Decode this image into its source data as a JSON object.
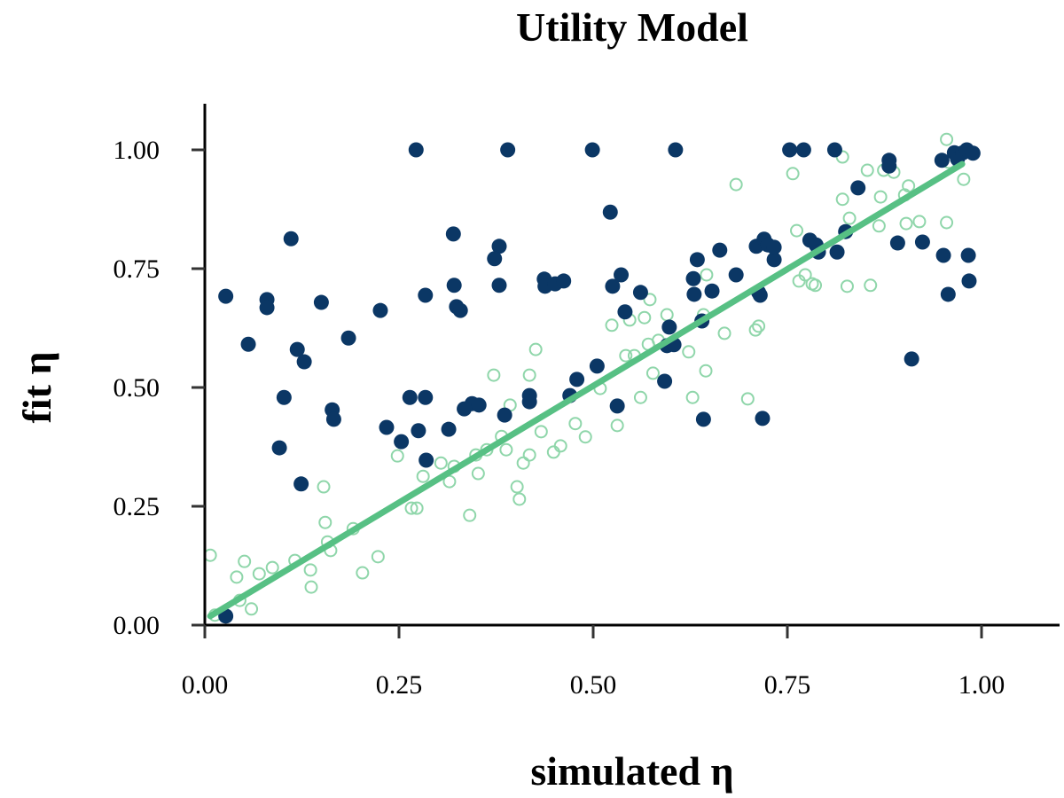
{
  "chart_data": {
    "type": "scatter",
    "title": "Utility Model",
    "xlabel": "simulated η",
    "ylabel": "fit η",
    "xlim": [
      0,
      1.1
    ],
    "ylim": [
      0,
      1.1
    ],
    "xticks": [
      "0.00",
      "0.25",
      "0.50",
      "0.75",
      "1.00"
    ],
    "yticks": [
      "0.00",
      "0.25",
      "0.50",
      "0.75",
      "1.00"
    ],
    "xtick_values": [
      0,
      0.25,
      0.5,
      0.75,
      1.0
    ],
    "ytick_values": [
      0,
      0.25,
      0.5,
      0.75,
      1.0
    ],
    "grid": false,
    "colors": {
      "filled": "#0b3765",
      "open": "#8fd6aa",
      "fit_line": "#57c084"
    },
    "series": [
      {
        "style": "filled",
        "points": [
          [
            0.027,
            0.692
          ],
          [
            0.027,
            0.019
          ],
          [
            0.056,
            0.591
          ],
          [
            0.08,
            0.685
          ],
          [
            0.08,
            0.668
          ],
          [
            0.111,
            0.813
          ],
          [
            0.102,
            0.479
          ],
          [
            0.096,
            0.373
          ],
          [
            0.119,
            0.58
          ],
          [
            0.128,
            0.554
          ],
          [
            0.124,
            0.297
          ],
          [
            0.15,
            0.679
          ],
          [
            0.164,
            0.453
          ],
          [
            0.166,
            0.433
          ],
          [
            0.185,
            0.604
          ],
          [
            0.226,
            0.662
          ],
          [
            0.234,
            0.416
          ],
          [
            0.253,
            0.386
          ],
          [
            0.264,
            0.479
          ],
          [
            0.275,
            0.409
          ],
          [
            0.272,
            1.0
          ],
          [
            0.284,
            0.694
          ],
          [
            0.284,
            0.479
          ],
          [
            0.285,
            0.347
          ],
          [
            0.314,
            0.412
          ],
          [
            0.32,
            0.823
          ],
          [
            0.321,
            0.715
          ],
          [
            0.324,
            0.67
          ],
          [
            0.329,
            0.662
          ],
          [
            0.334,
            0.455
          ],
          [
            0.344,
            0.466
          ],
          [
            0.353,
            0.463
          ],
          [
            0.379,
            0.797
          ],
          [
            0.373,
            0.771
          ],
          [
            0.379,
            0.715
          ],
          [
            0.386,
            0.442
          ],
          [
            0.39,
            1.0
          ],
          [
            0.418,
            0.483
          ],
          [
            0.418,
            0.47
          ],
          [
            0.437,
            0.728
          ],
          [
            0.438,
            0.713
          ],
          [
            0.451,
            0.718
          ],
          [
            0.462,
            0.724
          ],
          [
            0.47,
            0.483
          ],
          [
            0.479,
            0.517
          ],
          [
            0.499,
            1.0
          ],
          [
            0.505,
            0.545
          ],
          [
            0.522,
            0.869
          ],
          [
            0.525,
            0.713
          ],
          [
            0.531,
            0.461
          ],
          [
            0.536,
            0.737
          ],
          [
            0.541,
            0.659
          ],
          [
            0.561,
            0.7
          ],
          [
            0.592,
            0.513
          ],
          [
            0.598,
            0.627
          ],
          [
            0.595,
            0.588
          ],
          [
            0.604,
            0.59
          ],
          [
            0.606,
            1.0
          ],
          [
            0.629,
            0.729
          ],
          [
            0.634,
            0.769
          ],
          [
            0.63,
            0.696
          ],
          [
            0.64,
            0.64
          ],
          [
            0.642,
            0.433
          ],
          [
            0.653,
            0.703
          ],
          [
            0.663,
            0.789
          ],
          [
            0.684,
            0.737
          ],
          [
            0.71,
            0.797
          ],
          [
            0.713,
            0.7
          ],
          [
            0.715,
            0.694
          ],
          [
            0.718,
            0.435
          ],
          [
            0.72,
            0.812
          ],
          [
            0.725,
            0.8
          ],
          [
            0.733,
            0.769
          ],
          [
            0.733,
            0.795
          ],
          [
            0.753,
            1.0
          ],
          [
            0.771,
            1.0
          ],
          [
            0.779,
            0.81
          ],
          [
            0.787,
            0.8
          ],
          [
            0.79,
            0.785
          ],
          [
            0.811,
            1.0
          ],
          [
            0.814,
            0.785
          ],
          [
            0.825,
            0.828
          ],
          [
            0.841,
            0.92
          ],
          [
            0.881,
            0.978
          ],
          [
            0.881,
            0.966
          ],
          [
            0.892,
            0.804
          ],
          [
            0.91,
            0.56
          ],
          [
            0.924,
            0.806
          ],
          [
            0.949,
            0.978
          ],
          [
            0.951,
            0.778
          ],
          [
            0.957,
            0.696
          ],
          [
            0.965,
            0.994
          ],
          [
            0.969,
            0.981
          ],
          [
            0.976,
            0.994
          ],
          [
            0.981,
            1.0
          ],
          [
            0.989,
            0.993
          ],
          [
            0.983,
            0.778
          ],
          [
            0.984,
            0.724
          ]
        ]
      },
      {
        "style": "open",
        "points": [
          [
            0.007,
            0.147
          ],
          [
            0.013,
            0.021
          ],
          [
            0.041,
            0.101
          ],
          [
            0.045,
            0.052
          ],
          [
            0.051,
            0.134
          ],
          [
            0.06,
            0.034
          ],
          [
            0.07,
            0.108
          ],
          [
            0.087,
            0.121
          ],
          [
            0.116,
            0.136
          ],
          [
            0.136,
            0.116
          ],
          [
            0.137,
            0.08
          ],
          [
            0.153,
            0.291
          ],
          [
            0.155,
            0.216
          ],
          [
            0.158,
            0.175
          ],
          [
            0.162,
            0.157
          ],
          [
            0.191,
            0.203
          ],
          [
            0.203,
            0.11
          ],
          [
            0.223,
            0.144
          ],
          [
            0.248,
            0.356
          ],
          [
            0.266,
            0.246
          ],
          [
            0.273,
            0.246
          ],
          [
            0.281,
            0.313
          ],
          [
            0.304,
            0.341
          ],
          [
            0.315,
            0.302
          ],
          [
            0.321,
            0.334
          ],
          [
            0.341,
            0.231
          ],
          [
            0.349,
            0.358
          ],
          [
            0.352,
            0.319
          ],
          [
            0.363,
            0.369
          ],
          [
            0.372,
            0.526
          ],
          [
            0.382,
            0.397
          ],
          [
            0.388,
            0.369
          ],
          [
            0.393,
            0.463
          ],
          [
            0.402,
            0.291
          ],
          [
            0.405,
            0.265
          ],
          [
            0.41,
            0.341
          ],
          [
            0.418,
            0.358
          ],
          [
            0.418,
            0.526
          ],
          [
            0.426,
            0.58
          ],
          [
            0.433,
            0.407
          ],
          [
            0.449,
            0.364
          ],
          [
            0.458,
            0.377
          ],
          [
            0.477,
            0.424
          ],
          [
            0.49,
            0.396
          ],
          [
            0.509,
            0.498
          ],
          [
            0.524,
            0.631
          ],
          [
            0.531,
            0.42
          ],
          [
            0.542,
            0.567
          ],
          [
            0.547,
            0.642
          ],
          [
            0.553,
            0.567
          ],
          [
            0.561,
            0.479
          ],
          [
            0.566,
            0.647
          ],
          [
            0.571,
            0.591
          ],
          [
            0.573,
            0.685
          ],
          [
            0.577,
            0.53
          ],
          [
            0.584,
            0.599
          ],
          [
            0.595,
            0.653
          ],
          [
            0.623,
            0.575
          ],
          [
            0.628,
            0.479
          ],
          [
            0.642,
            0.653
          ],
          [
            0.645,
            0.535
          ],
          [
            0.646,
            0.737
          ],
          [
            0.669,
            0.614
          ],
          [
            0.684,
            0.927
          ],
          [
            0.699,
            0.476
          ],
          [
            0.709,
            0.621
          ],
          [
            0.713,
            0.629
          ],
          [
            0.757,
            0.95
          ],
          [
            0.762,
            0.83
          ],
          [
            0.765,
            0.724
          ],
          [
            0.773,
            0.737
          ],
          [
            0.782,
            0.718
          ],
          [
            0.786,
            0.715
          ],
          [
            0.821,
            0.896
          ],
          [
            0.821,
            0.985
          ],
          [
            0.83,
            0.856
          ],
          [
            0.827,
            0.713
          ],
          [
            0.853,
            0.957
          ],
          [
            0.857,
            0.715
          ],
          [
            0.868,
            0.84
          ],
          [
            0.87,
            0.901
          ],
          [
            0.874,
            0.957
          ],
          [
            0.887,
            0.953
          ],
          [
            0.901,
            0.905
          ],
          [
            0.903,
            0.845
          ],
          [
            0.906,
            0.924
          ],
          [
            0.92,
            0.849
          ],
          [
            0.955,
            1.022
          ],
          [
            0.955,
            0.847
          ],
          [
            0.958,
            0.974
          ],
          [
            0.977,
            0.938
          ]
        ]
      }
    ],
    "fit_line": {
      "x": [
        0.007,
        0.975
      ],
      "y": [
        0.019,
        0.97
      ]
    }
  }
}
